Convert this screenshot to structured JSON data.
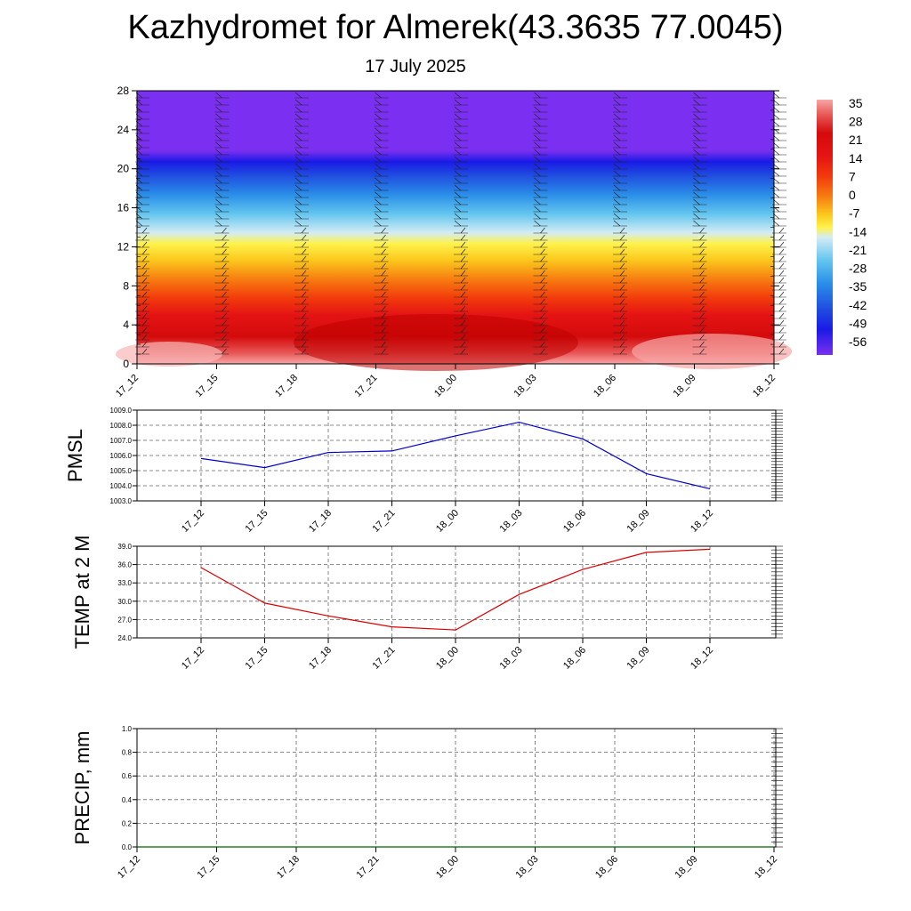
{
  "header": {
    "title": "Kazhydromet for Almerek(43.3635 77.0045)",
    "subtitle": "17 July 2025"
  },
  "colors": {
    "pmsl_line": "#0000cc",
    "temp_line": "#dd0000",
    "precip_line": "#006400"
  },
  "chart_data": [
    {
      "type": "heatmap",
      "title": "",
      "x_ticks": [
        "17_12",
        "17_15",
        "17_18",
        "17_21",
        "18_00",
        "18_03",
        "18_06",
        "18_09",
        "18_12"
      ],
      "y_ticks": [
        0,
        4,
        8,
        12,
        16,
        20,
        24,
        28
      ],
      "ylim": [
        0,
        28
      ],
      "colorbar_labels": [
        "35",
        "28",
        "21",
        "14",
        "7",
        "0",
        "-7",
        "-14",
        "-21",
        "-28",
        "-35",
        "-42",
        "-49",
        "-56"
      ],
      "colorbar_placement": "right",
      "grid": false
    },
    {
      "type": "line",
      "ylabel": "PMSL",
      "categories": [
        "17_12",
        "17_15",
        "17_18",
        "17_21",
        "18_00",
        "18_03",
        "18_06",
        "18_09",
        "18_12"
      ],
      "values": [
        1005.8,
        1005.2,
        1006.2,
        1006.3,
        1007.3,
        1008.2,
        1007.1,
        1004.8,
        1003.8
      ],
      "ylim": [
        1003.0,
        1009.0
      ],
      "y_ticks": [
        "1003.0",
        "1004.0",
        "1005.0",
        "1006.0",
        "1007.0",
        "1008.0",
        "1009.0"
      ],
      "grid": true
    },
    {
      "type": "line",
      "ylabel": "TEMP at 2 M",
      "categories": [
        "17_12",
        "17_15",
        "17_18",
        "17_21",
        "18_00",
        "18_03",
        "18_06",
        "18_09",
        "18_12"
      ],
      "values": [
        35.5,
        29.7,
        27.6,
        25.8,
        25.3,
        31.1,
        35.2,
        38.0,
        38.5
      ],
      "ylim": [
        24.0,
        39.0
      ],
      "y_ticks": [
        "24.0",
        "27.0",
        "30.0",
        "33.0",
        "36.0",
        "39.0"
      ],
      "grid": true
    },
    {
      "type": "line",
      "ylabel": "PRECIP, mm",
      "categories": [
        "17_12",
        "17_15",
        "17_18",
        "17_21",
        "18_00",
        "18_03",
        "18_06",
        "18_09",
        "18_12"
      ],
      "values": [
        0,
        0,
        0,
        0,
        0,
        0,
        0,
        0,
        0
      ],
      "ylim": [
        0.0,
        1.0
      ],
      "y_ticks": [
        "0.0",
        "0.2",
        "0.4",
        "0.6",
        "0.8",
        "1.0"
      ],
      "grid": true
    }
  ]
}
